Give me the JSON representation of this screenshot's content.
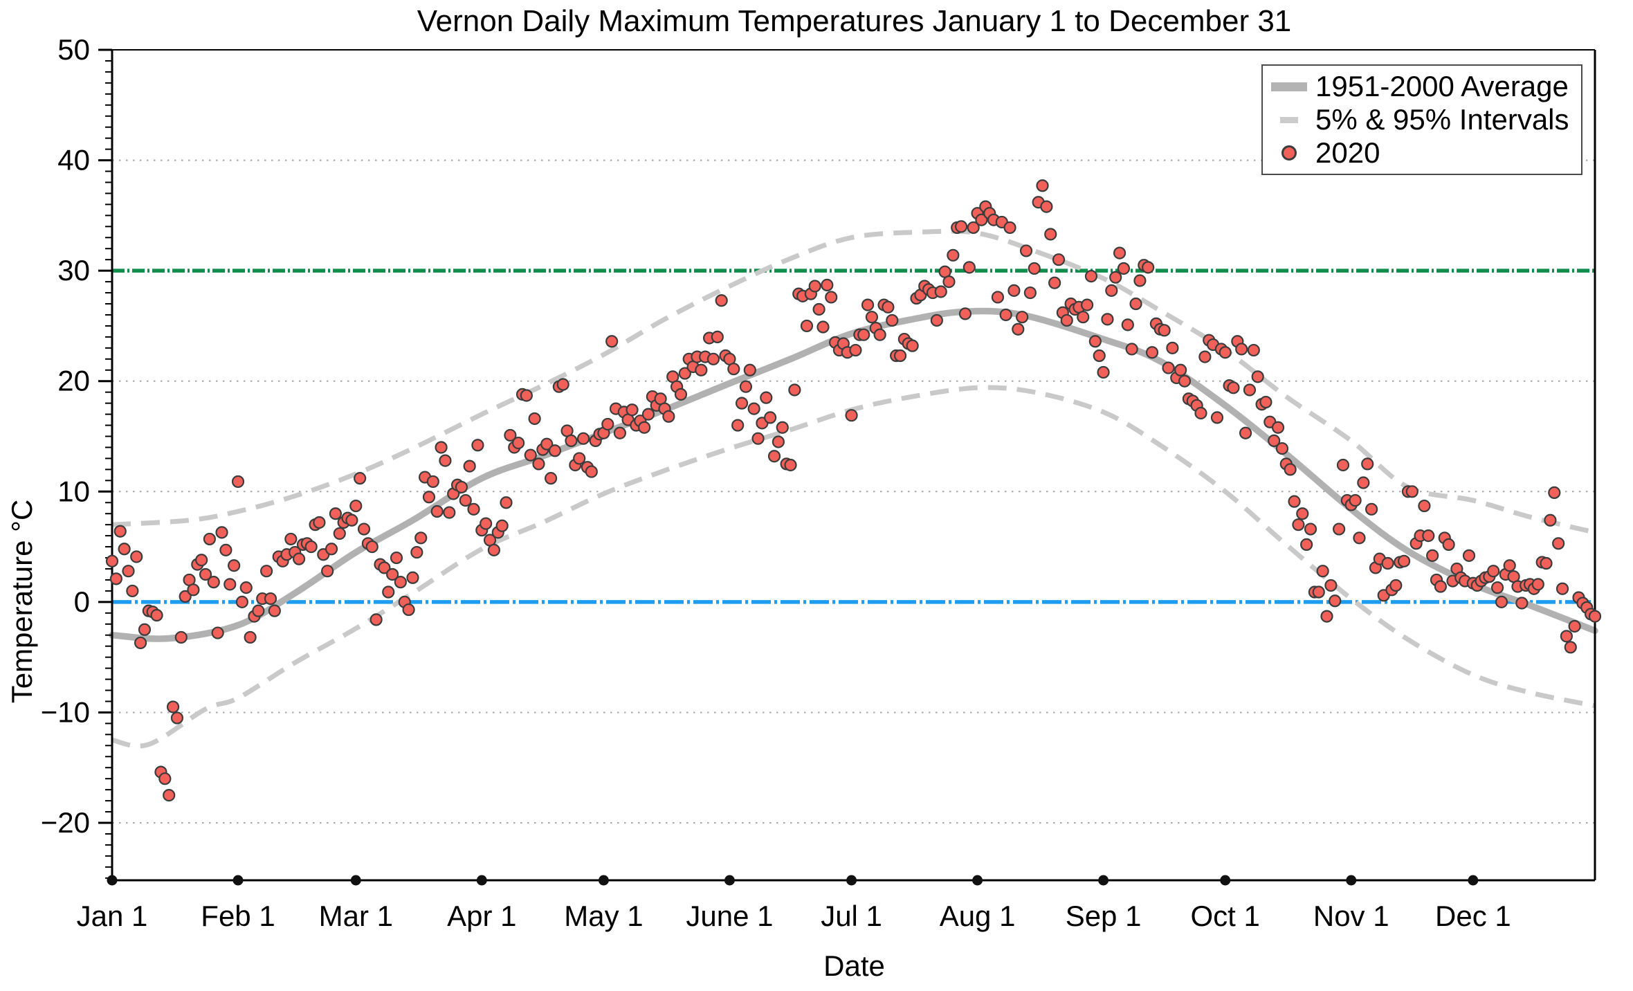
{
  "chart_data": {
    "type": "scatter",
    "title": "Vernon Daily Maximum Temperatures January 1 to December 31",
    "xlabel": "Date",
    "ylabel": "Temperature °C",
    "ylim": [
      -25.2,
      50
    ],
    "xlim_days": [
      1,
      366
    ],
    "grid": "dotted horizontal lines at labeled ticks",
    "grid_y_dotted": [
      40,
      20,
      10,
      -10,
      -20
    ],
    "yticks": [
      {
        "value": 50,
        "label": "50"
      },
      {
        "value": 40,
        "label": "40"
      },
      {
        "value": 30,
        "label": "30"
      },
      {
        "value": 20,
        "label": "20"
      },
      {
        "value": 10,
        "label": "10"
      },
      {
        "value": 0,
        "label": "0"
      },
      {
        "value": -10,
        "label": "−10"
      },
      {
        "value": -20,
        "label": "−20"
      }
    ],
    "xticks": [
      {
        "day": 1,
        "label": "Jan 1"
      },
      {
        "day": 32,
        "label": "Feb 1"
      },
      {
        "day": 61,
        "label": "Mar 1"
      },
      {
        "day": 92,
        "label": "Apr 1"
      },
      {
        "day": 122,
        "label": "May 1"
      },
      {
        "day": 153,
        "label": "June 1"
      },
      {
        "day": 183,
        "label": "Jul 1"
      },
      {
        "day": 214,
        "label": "Aug 1"
      },
      {
        "day": 245,
        "label": "Sep 1"
      },
      {
        "day": 275,
        "label": "Oct 1"
      },
      {
        "day": 306,
        "label": "Nov 1"
      },
      {
        "day": 336,
        "label": "Dec 1"
      }
    ],
    "reference_lines": [
      {
        "name": "freezing-line",
        "value": 0,
        "color": "#1e9cf0",
        "style": "dash-dot"
      },
      {
        "name": "thirty-degree-line",
        "value": 30,
        "color": "#108c4b",
        "style": "dash-dot-dash"
      }
    ],
    "legend": {
      "position": "top-right",
      "items": [
        {
          "label": "1951-2000 Average",
          "marker": "thick-gray-line",
          "color": "#b3b3b3"
        },
        {
          "label": "5% & 95% Intervals",
          "marker": "gray-dashed-line",
          "color": "#cbcbcb"
        },
        {
          "label": "2020",
          "marker": "red-dot",
          "color": "#f2605a"
        }
      ]
    },
    "series": [
      {
        "name": "1951-2000 Average",
        "type": "smooth-line",
        "color": "#b1b1b1",
        "width": 9.5,
        "points_day_temp": [
          [
            1,
            -3.0
          ],
          [
            15,
            -3.3
          ],
          [
            32,
            -2.1
          ],
          [
            46,
            0.8
          ],
          [
            61,
            4.5
          ],
          [
            75,
            7.4
          ],
          [
            92,
            11.2
          ],
          [
            107,
            13.2
          ],
          [
            122,
            15.3
          ],
          [
            137,
            17.4
          ],
          [
            153,
            19.8
          ],
          [
            168,
            22.0
          ],
          [
            183,
            24.3
          ],
          [
            198,
            25.6
          ],
          [
            211,
            26.3
          ],
          [
            225,
            26.0
          ],
          [
            245,
            23.8
          ],
          [
            259,
            21.8
          ],
          [
            275,
            17.8
          ],
          [
            290,
            13.4
          ],
          [
            306,
            8.4
          ],
          [
            320,
            4.6
          ],
          [
            336,
            1.6
          ],
          [
            350,
            -0.3
          ],
          [
            366,
            -2.6
          ]
        ]
      },
      {
        "name": "95% Interval",
        "type": "smooth-dashed-line",
        "color": "#c9c9c9",
        "width": 7,
        "points_day_temp": [
          [
            1,
            7.0
          ],
          [
            20,
            7.4
          ],
          [
            32,
            8.2
          ],
          [
            46,
            9.6
          ],
          [
            61,
            11.6
          ],
          [
            75,
            13.9
          ],
          [
            92,
            17.0
          ],
          [
            107,
            19.6
          ],
          [
            122,
            22.4
          ],
          [
            137,
            25.6
          ],
          [
            153,
            28.6
          ],
          [
            168,
            31.1
          ],
          [
            183,
            33.0
          ],
          [
            200,
            33.5
          ],
          [
            214,
            33.4
          ],
          [
            228,
            31.8
          ],
          [
            245,
            29.3
          ],
          [
            258,
            26.6
          ],
          [
            275,
            22.8
          ],
          [
            290,
            18.6
          ],
          [
            306,
            14.6
          ],
          [
            320,
            10.4
          ],
          [
            336,
            9.2
          ],
          [
            350,
            7.7
          ],
          [
            366,
            6.3
          ]
        ]
      },
      {
        "name": "5% Interval",
        "type": "smooth-dashed-line",
        "color": "#c9c9c9",
        "width": 7,
        "points_day_temp": [
          [
            1,
            -12.5
          ],
          [
            10,
            -12.9
          ],
          [
            24,
            -9.7
          ],
          [
            32,
            -8.7
          ],
          [
            46,
            -5.5
          ],
          [
            61,
            -2.4
          ],
          [
            75,
            0.8
          ],
          [
            92,
            4.8
          ],
          [
            107,
            7.2
          ],
          [
            122,
            9.8
          ],
          [
            137,
            11.9
          ],
          [
            153,
            13.9
          ],
          [
            168,
            15.6
          ],
          [
            183,
            17.4
          ],
          [
            198,
            18.6
          ],
          [
            214,
            19.4
          ],
          [
            228,
            19.0
          ],
          [
            245,
            17.2
          ],
          [
            259,
            14.2
          ],
          [
            275,
            10.0
          ],
          [
            290,
            5.2
          ],
          [
            306,
            0.3
          ],
          [
            320,
            -3.4
          ],
          [
            336,
            -6.6
          ],
          [
            350,
            -8.2
          ],
          [
            366,
            -9.4
          ]
        ]
      },
      {
        "name": "2020",
        "type": "scatter",
        "color": "#f2605a",
        "edge_color": "#3c3c3c",
        "marker_radius": 8,
        "daily_max_temps_c": [
          3.7,
          2.1,
          6.4,
          4.8,
          2.8,
          1.0,
          4.1,
          -3.7,
          -2.5,
          -0.8,
          -0.9,
          -1.2,
          -15.4,
          -16.0,
          -17.5,
          -9.5,
          -10.5,
          -3.2,
          0.5,
          2.0,
          1.1,
          3.4,
          3.8,
          2.5,
          5.7,
          1.8,
          -2.8,
          6.3,
          4.7,
          1.6,
          3.3,
          10.9,
          0.0,
          1.3,
          -3.2,
          -1.3,
          -0.8,
          0.3,
          2.8,
          0.3,
          -0.8,
          4.1,
          3.7,
          4.3,
          5.7,
          4.5,
          3.9,
          5.2,
          5.3,
          5.0,
          7.0,
          7.2,
          4.3,
          2.8,
          4.8,
          8.0,
          6.2,
          7.2,
          7.6,
          7.4,
          8.7,
          11.2,
          6.6,
          5.3,
          5.0,
          -1.6,
          3.4,
          3.1,
          0.9,
          2.5,
          4.0,
          1.8,
          0.0,
          -0.7,
          2.2,
          4.5,
          5.8,
          11.3,
          9.5,
          10.9,
          8.2,
          14.0,
          12.8,
          8.1,
          9.8,
          10.6,
          10.4,
          9.2,
          12.3,
          8.4,
          14.2,
          6.5,
          7.1,
          5.6,
          4.7,
          6.3,
          6.9,
          9.0,
          15.1,
          14.0,
          14.4,
          18.8,
          18.7,
          13.3,
          16.6,
          12.5,
          13.8,
          14.3,
          11.2,
          13.7,
          19.5,
          19.7,
          15.5,
          14.6,
          12.4,
          13.0,
          14.8,
          12.2,
          11.8,
          14.6,
          15.2,
          15.3,
          16.1,
          23.6,
          17.5,
          15.3,
          17.2,
          16.5,
          17.4,
          16.0,
          16.4,
          15.8,
          17.0,
          18.6,
          17.8,
          18.4,
          17.5,
          16.8,
          20.4,
          19.5,
          18.8,
          20.7,
          22.0,
          21.3,
          22.2,
          21.0,
          22.2,
          23.9,
          22.0,
          24.0,
          27.3,
          22.3,
          22.0,
          21.1,
          16.0,
          18.0,
          19.5,
          21.0,
          17.5,
          14.8,
          16.2,
          18.5,
          16.7,
          13.2,
          14.5,
          15.8,
          12.5,
          12.4,
          19.2,
          27.9,
          27.7,
          25.0,
          27.9,
          28.6,
          26.5,
          24.9,
          28.7,
          27.6,
          23.5,
          22.8,
          23.4,
          22.6,
          16.9,
          22.8,
          24.2,
          24.2,
          26.9,
          25.8,
          24.8,
          24.2,
          26.9,
          26.7,
          25.5,
          22.3,
          22.3,
          23.8,
          23.4,
          23.2,
          27.5,
          27.8,
          28.6,
          28.3,
          28.0,
          25.5,
          28.1,
          29.9,
          29.0,
          31.4,
          33.9,
          34.0,
          26.1,
          30.3,
          33.9,
          35.2,
          34.6,
          35.8,
          35.2,
          34.6,
          27.6,
          34.4,
          26.0,
          33.9,
          28.2,
          24.7,
          25.8,
          31.8,
          28.0,
          30.2,
          36.2,
          37.7,
          35.8,
          33.3,
          28.9,
          31.0,
          26.2,
          25.5,
          27.0,
          26.5,
          26.7,
          25.8,
          26.9,
          29.5,
          23.6,
          22.3,
          20.8,
          25.6,
          28.2,
          29.4,
          31.6,
          30.2,
          25.1,
          22.9,
          27.0,
          29.1,
          30.5,
          30.3,
          22.6,
          25.2,
          24.7,
          24.6,
          21.2,
          23.0,
          20.3,
          21.0,
          20.0,
          18.4,
          18.2,
          17.8,
          17.1,
          22.2,
          23.7,
          23.3,
          16.7,
          22.9,
          22.6,
          19.6,
          19.4,
          23.6,
          22.9,
          15.3,
          19.2,
          22.8,
          20.4,
          17.9,
          18.1,
          16.3,
          14.6,
          15.8,
          13.9,
          12.5,
          12.0,
          9.1,
          7.0,
          8.0,
          5.2,
          6.6,
          0.9,
          0.9,
          2.8,
          -1.3,
          1.5,
          0.1,
          6.6,
          12.4,
          9.2,
          8.8,
          9.2,
          5.8,
          10.8,
          12.5,
          8.4,
          3.1,
          3.9,
          0.6,
          3.5,
          1.1,
          1.5,
          3.6,
          3.7,
          10.0,
          10.0,
          5.3,
          6.0,
          8.7,
          6.0,
          4.2,
          2.0,
          1.4,
          5.8,
          5.2,
          1.9,
          3.0,
          2.2,
          1.9,
          4.2,
          1.7,
          1.5,
          1.9,
          2.2,
          2.3,
          2.8,
          1.3,
          0.0,
          2.5,
          3.3,
          2.3,
          1.4,
          -0.1,
          1.5,
          1.6,
          1.2,
          1.6,
          3.6,
          3.5,
          7.4,
          9.9,
          5.3,
          1.2,
          -3.1,
          -4.1,
          -2.2,
          0.4,
          -0.1,
          -0.5,
          -1.1,
          -1.3
        ]
      }
    ]
  }
}
